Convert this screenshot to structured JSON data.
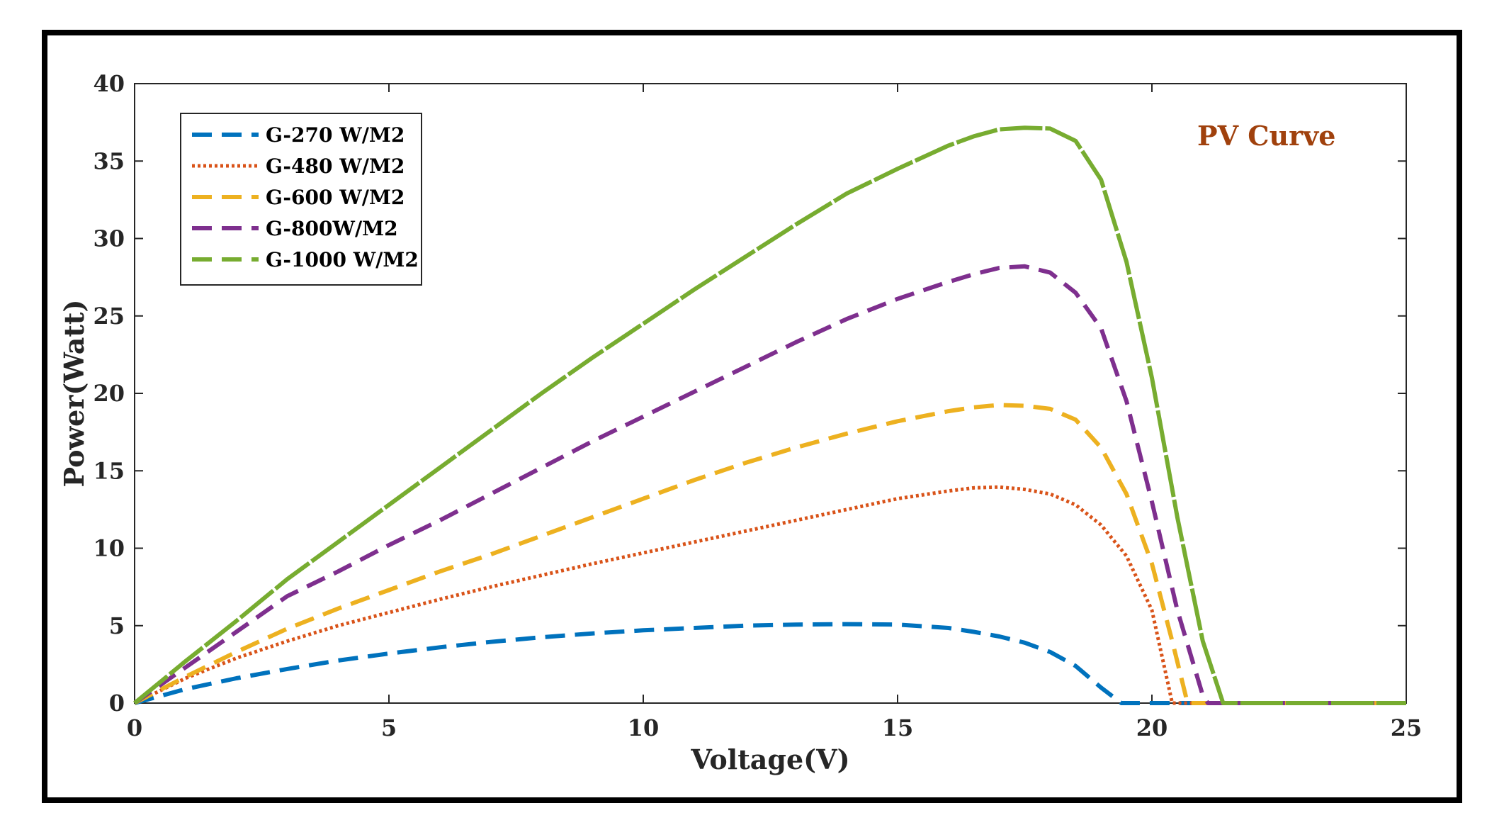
{
  "chart_data": {
    "type": "line",
    "title": "",
    "annotation": "PV Curve",
    "annotation_color": "#A0410D",
    "xlabel": "Voltage(V)",
    "ylabel": "Power(Watt)",
    "xlim": [
      0,
      25
    ],
    "ylim": [
      0,
      40
    ],
    "xticks": [
      0,
      5,
      10,
      15,
      20,
      25
    ],
    "yticks": [
      0,
      5,
      10,
      15,
      20,
      25,
      30,
      35,
      40
    ],
    "grid": false,
    "legend_position": "top-left",
    "series": [
      {
        "name": "G-270 W/M2",
        "color": "#0072BD",
        "style": "dashed",
        "x": [
          0,
          1,
          2,
          3,
          4,
          5,
          6,
          7,
          8,
          9,
          10,
          11,
          12,
          13,
          14,
          15,
          16,
          16.5,
          17,
          17.5,
          18,
          18.5,
          19,
          19.4,
          25
        ],
        "y": [
          0,
          0.9,
          1.6,
          2.2,
          2.75,
          3.2,
          3.6,
          3.95,
          4.25,
          4.5,
          4.7,
          4.85,
          5.0,
          5.07,
          5.1,
          5.07,
          4.85,
          4.6,
          4.3,
          3.9,
          3.3,
          2.4,
          1.0,
          0,
          0
        ]
      },
      {
        "name": "G-480 W/M2",
        "color": "#D95319",
        "style": "dotted",
        "x": [
          0,
          1,
          2,
          3,
          4,
          5,
          6,
          7,
          8,
          9,
          10,
          11,
          12,
          13,
          14,
          15,
          16,
          16.5,
          17,
          17.5,
          18,
          18.5,
          19,
          19.5,
          20,
          20.4,
          25
        ],
        "y": [
          0,
          1.6,
          2.9,
          4.0,
          5.0,
          5.85,
          6.7,
          7.5,
          8.25,
          9.0,
          9.7,
          10.4,
          11.1,
          11.8,
          12.5,
          13.2,
          13.7,
          13.9,
          13.95,
          13.8,
          13.5,
          12.8,
          11.5,
          9.5,
          6.0,
          0,
          0
        ]
      },
      {
        "name": "G-600 W/M2",
        "color": "#EDB120",
        "style": "dashed",
        "x": [
          0,
          1,
          2,
          3,
          4,
          5,
          6,
          7,
          8,
          9,
          10,
          11,
          12,
          13,
          14,
          15,
          16,
          16.5,
          17,
          17.5,
          18,
          18.5,
          19,
          19.5,
          20,
          20.4,
          20.7,
          25
        ],
        "y": [
          0,
          1.7,
          3.3,
          4.8,
          6.1,
          7.3,
          8.5,
          9.6,
          10.8,
          12.0,
          13.2,
          14.4,
          15.5,
          16.5,
          17.4,
          18.2,
          18.85,
          19.1,
          19.25,
          19.2,
          19.0,
          18.3,
          16.5,
          13.5,
          9.0,
          4.0,
          0,
          0
        ]
      },
      {
        "name": "G-800W/M2",
        "color": "#7E2F8E",
        "style": "dashed",
        "x": [
          0,
          1,
          2,
          3,
          4,
          5,
          6,
          7,
          8,
          9,
          10,
          11,
          12,
          13,
          14,
          15,
          16,
          16.5,
          17,
          17.5,
          18,
          18.5,
          19,
          19.5,
          20,
          20.5,
          21.0,
          21.1,
          25
        ],
        "y": [
          0,
          2.3,
          4.6,
          6.9,
          8.5,
          10.2,
          11.8,
          13.5,
          15.2,
          16.9,
          18.5,
          20.1,
          21.7,
          23.3,
          24.8,
          26.1,
          27.2,
          27.7,
          28.1,
          28.2,
          27.8,
          26.5,
          24.2,
          19.5,
          13.0,
          6.0,
          0.5,
          0,
          0
        ]
      },
      {
        "name": "G-1000 W/M2",
        "color": "#77AC30",
        "style": "dash-solid",
        "x": [
          0,
          1,
          2,
          3,
          4,
          5,
          6,
          7,
          8,
          9,
          10,
          11,
          12,
          13,
          14,
          15,
          16,
          16.5,
          17,
          17.5,
          18,
          18.5,
          19,
          19.5,
          20,
          20.5,
          21.0,
          21.4,
          25
        ],
        "y": [
          0,
          2.7,
          5.3,
          8.0,
          10.4,
          12.8,
          15.2,
          17.6,
          20.0,
          22.3,
          24.5,
          26.7,
          28.8,
          30.9,
          32.9,
          34.5,
          36.0,
          36.6,
          37.05,
          37.15,
          37.1,
          36.3,
          33.8,
          28.5,
          21.0,
          12.0,
          4.0,
          0,
          0
        ]
      }
    ]
  }
}
